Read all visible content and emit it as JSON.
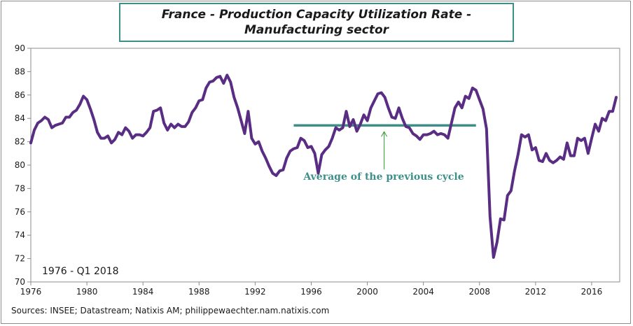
{
  "colors": {
    "series": "#5a2d84",
    "average": "#3d8f8a",
    "title_border": "#3d8f8a"
  },
  "chart_data": {
    "type": "line",
    "title_line1": "France - Production Capacity Utilization Rate -",
    "title_line2": "Manufacturing sector",
    "period_label": "1976 - Q1 2018",
    "source": "Sources: INSEE; Datastream; Natixis AM; philippewaechter.nam.natixis.com",
    "xlim": [
      1976,
      2018
    ],
    "ylim": [
      70,
      90
    ],
    "x_ticks": [
      1976,
      1980,
      1984,
      1988,
      1992,
      1996,
      2000,
      2004,
      2008,
      2012,
      2016
    ],
    "y_ticks": [
      70,
      72,
      74,
      76,
      78,
      80,
      82,
      84,
      86,
      88,
      90
    ],
    "grid": false,
    "annotation": {
      "text": "Average of the previous cycle",
      "value": 83.4,
      "x_start": 1994.75,
      "x_end": 2007.75,
      "arrow_x": 2001.2
    },
    "series": [
      {
        "x": [
          1976.0,
          1976.25,
          1976.5,
          1976.75,
          1977.0,
          1977.25,
          1977.5,
          1977.75,
          1978.0,
          1978.25,
          1978.5,
          1978.75,
          1979.0,
          1979.25,
          1979.5,
          1979.75,
          1980.0,
          1980.25,
          1980.5,
          1980.75,
          1981.0,
          1981.25,
          1981.5,
          1981.75,
          1982.0,
          1982.25,
          1982.5,
          1982.75,
          1983.0,
          1983.25,
          1983.5,
          1983.75,
          1984.0,
          1984.25,
          1984.5,
          1984.75,
          1985.0,
          1985.25,
          1985.5,
          1985.75,
          1986.0,
          1986.25,
          1986.5,
          1986.75,
          1987.0,
          1987.25,
          1987.5,
          1987.75,
          1988.0,
          1988.25,
          1988.5,
          1988.75,
          1989.0,
          1989.25,
          1989.5,
          1989.75,
          1990.0,
          1990.25,
          1990.5,
          1990.75,
          1991.0,
          1991.25,
          1991.5,
          1991.75,
          1992.0,
          1992.25,
          1992.5,
          1992.75,
          1993.0,
          1993.25,
          1993.5,
          1993.75,
          1994.0,
          1994.25,
          1994.5,
          1994.75,
          1995.0,
          1995.25,
          1995.5,
          1995.75,
          1996.0,
          1996.25,
          1996.5,
          1996.75,
          1997.0,
          1997.25,
          1997.5,
          1997.75,
          1998.0,
          1998.25,
          1998.5,
          1998.75,
          1999.0,
          1999.25,
          1999.5,
          1999.75,
          2000.0,
          2000.25,
          2000.5,
          2000.75,
          2001.0,
          2001.25,
          2001.5,
          2001.75,
          2002.0,
          2002.25,
          2002.5,
          2002.75,
          2003.0,
          2003.25,
          2003.5,
          2003.75,
          2004.0,
          2004.25,
          2004.5,
          2004.75,
          2005.0,
          2005.25,
          2005.5,
          2005.75,
          2006.0,
          2006.25,
          2006.5,
          2006.75,
          2007.0,
          2007.25,
          2007.5,
          2007.75,
          2008.0,
          2008.25,
          2008.5,
          2008.75,
          2009.0,
          2009.25,
          2009.5,
          2009.75,
          2010.0,
          2010.25,
          2010.5,
          2010.75,
          2011.0,
          2011.25,
          2011.5,
          2011.75,
          2012.0,
          2012.25,
          2012.5,
          2012.75,
          2013.0,
          2013.25,
          2013.5,
          2013.75,
          2014.0,
          2014.25,
          2014.5,
          2014.75,
          2015.0,
          2015.25,
          2015.5,
          2015.75,
          2016.0,
          2016.25,
          2016.5,
          2016.75,
          2017.0,
          2017.25,
          2017.5,
          2017.75
        ],
        "values": [
          81.9,
          83.0,
          83.6,
          83.8,
          84.1,
          83.9,
          83.2,
          83.4,
          83.5,
          83.6,
          84.1,
          84.1,
          84.5,
          84.7,
          85.2,
          85.9,
          85.6,
          84.8,
          83.9,
          82.8,
          82.3,
          82.3,
          82.5,
          81.9,
          82.2,
          82.8,
          82.6,
          83.2,
          82.9,
          82.3,
          82.6,
          82.6,
          82.5,
          82.8,
          83.2,
          84.6,
          84.7,
          84.9,
          83.6,
          83.0,
          83.5,
          83.2,
          83.5,
          83.3,
          83.3,
          83.7,
          84.5,
          84.9,
          85.5,
          85.6,
          86.6,
          87.1,
          87.2,
          87.5,
          87.6,
          87.0,
          87.7,
          87.1,
          85.8,
          84.9,
          83.8,
          82.7,
          84.6,
          82.3,
          81.8,
          82.0,
          81.2,
          80.6,
          79.9,
          79.3,
          79.1,
          79.5,
          79.6,
          80.6,
          81.2,
          81.4,
          81.5,
          82.3,
          82.1,
          81.5,
          81.6,
          81.0,
          79.3,
          80.9,
          81.3,
          81.6,
          82.3,
          83.2,
          83.0,
          83.2,
          84.6,
          83.3,
          83.9,
          82.9,
          83.5,
          84.3,
          83.8,
          84.9,
          85.5,
          86.1,
          86.2,
          85.8,
          84.9,
          84.1,
          84.0,
          84.9,
          84.0,
          83.3,
          83.2,
          82.7,
          82.5,
          82.2,
          82.6,
          82.6,
          82.7,
          82.9,
          82.6,
          82.7,
          82.6,
          82.3,
          83.6,
          84.9,
          85.4,
          84.9,
          85.9,
          85.7,
          86.6,
          86.4,
          85.6,
          84.8,
          83.1,
          75.6,
          72.1,
          73.4,
          75.4,
          75.3,
          77.4,
          77.8,
          79.5,
          80.9,
          82.6,
          82.4,
          82.6,
          81.3,
          81.5,
          80.4,
          80.3,
          81.0,
          80.4,
          80.2,
          80.4,
          80.7,
          80.5,
          81.9,
          80.8,
          80.8,
          82.3,
          82.1,
          82.3,
          81.0,
          82.3,
          83.5,
          82.9,
          84.0,
          83.8,
          84.6,
          84.6,
          85.8
        ]
      }
    ]
  }
}
